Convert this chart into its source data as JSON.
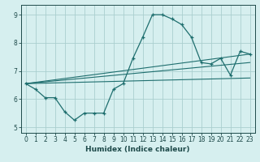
{
  "xlabel": "Humidex (Indice chaleur)",
  "bg_color": "#d6efef",
  "line_color": "#1e6e6e",
  "grid_color": "#aacfcf",
  "xlim": [
    -0.5,
    23.5
  ],
  "ylim": [
    4.8,
    9.35
  ],
  "xticks": [
    0,
    1,
    2,
    3,
    4,
    5,
    6,
    7,
    8,
    9,
    10,
    11,
    12,
    13,
    14,
    15,
    16,
    17,
    18,
    19,
    20,
    21,
    22,
    23
  ],
  "yticks": [
    5,
    6,
    7,
    8,
    9
  ],
  "main_x": [
    0,
    1,
    2,
    3,
    4,
    5,
    6,
    7,
    8,
    9,
    10,
    11,
    12,
    13,
    14,
    15,
    16,
    17,
    18,
    19,
    20,
    21,
    22,
    23
  ],
  "main_y": [
    6.55,
    6.35,
    6.05,
    6.05,
    5.55,
    5.25,
    5.5,
    5.5,
    5.5,
    6.35,
    6.55,
    7.45,
    8.2,
    9.0,
    9.0,
    8.85,
    8.65,
    8.2,
    7.3,
    7.25,
    7.45,
    6.85,
    7.7,
    7.6
  ],
  "line1_x": [
    0,
    23
  ],
  "line1_y": [
    6.55,
    7.6
  ],
  "line2_x": [
    0,
    23
  ],
  "line2_y": [
    6.55,
    7.3
  ],
  "line3_x": [
    0,
    23
  ],
  "line3_y": [
    6.55,
    6.75
  ]
}
